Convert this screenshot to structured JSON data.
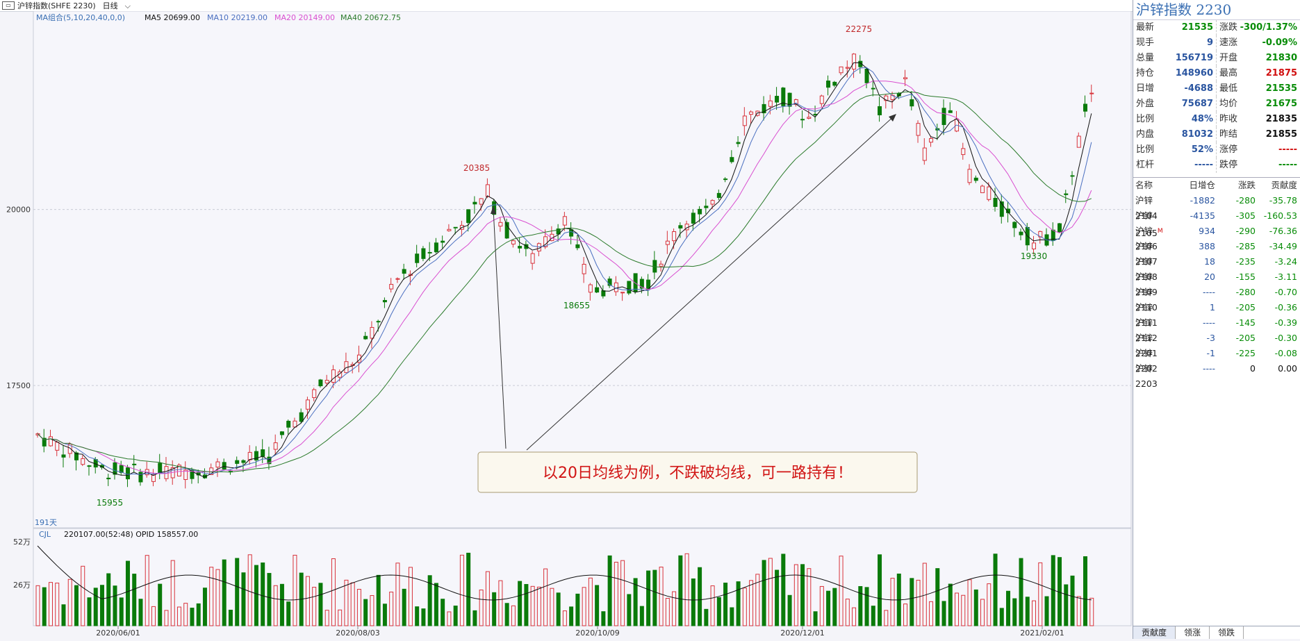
{
  "titlebar": {
    "symbol": "沪锌指数(SHFE 2230)",
    "period": "日线"
  },
  "ma_header": {
    "combo": "MA组合(5,10,20,40,0,0)",
    "ma5": "MA5 20699.00",
    "ma10": "MA10 20219.00",
    "ma20": "MA20 20149.00",
    "ma40": "MA40 20672.75"
  },
  "days": "191天",
  "price_levels": [
    {
      "label": "20000",
      "value": 20000
    },
    {
      "label": "17500",
      "value": 17500
    }
  ],
  "annotations": {
    "high_main": "22275",
    "high_left": "20385",
    "low_mid": "18655",
    "low_right": "19330",
    "low_left": "15955"
  },
  "callout": "以20日均线为例，不跌破均线，可一路持有！",
  "volume": {
    "header": "CJL",
    "values": "220107.00(52:48)  OPID 158557.00",
    "level_high": "52万",
    "level_mid": "26万"
  },
  "dates": [
    "2020/06/01",
    "2020/08/03",
    "2020/10/09",
    "2020/12/01",
    "2021/02/01"
  ],
  "panel": {
    "title": "沪锌指数 2230",
    "quote": [
      {
        "l1": "最新",
        "v1": "21535",
        "c1": "green",
        "l2": "涨跌",
        "v2": "-300/1.37%",
        "c2": "green"
      },
      {
        "l1": "现手",
        "v1": "9",
        "c1": "blue",
        "l2": "速涨",
        "v2": "-0.09%",
        "c2": "green"
      },
      {
        "l1": "总量",
        "v1": "156719",
        "c1": "blue",
        "l2": "开盘",
        "v2": "21830",
        "c2": "green"
      },
      {
        "l1": "持仓",
        "v1": "148960",
        "c1": "blue",
        "l2": "最高",
        "v2": "21875",
        "c2": "red"
      },
      {
        "l1": "日增",
        "v1": "-4688",
        "c1": "blue",
        "l2": "最低",
        "v2": "21535",
        "c2": "green"
      },
      {
        "l1": "外盘",
        "v1": "75687",
        "c1": "blue",
        "l2": "均价",
        "v2": "21675",
        "c2": "green"
      },
      {
        "l1": "比例",
        "v1": "48%",
        "c1": "blue",
        "l2": "昨收",
        "v2": "21835",
        "c2": "black"
      },
      {
        "l1": "内盘",
        "v1": "81032",
        "c1": "blue",
        "l2": "昨结",
        "v2": "21855",
        "c2": "black"
      },
      {
        "l1": "比例",
        "v1": "52%",
        "c1": "blue",
        "l2": "涨停",
        "v2": "-----",
        "c2": "red"
      },
      {
        "l1": "杠杆",
        "v1": "-----",
        "c1": "blue",
        "l2": "跌停",
        "v2": "-----",
        "c2": "green"
      }
    ],
    "table_header": {
      "name": "名称",
      "oi": "日增仓",
      "chg": "涨跌",
      "ctr": "贡献度"
    },
    "contracts": [
      {
        "name": "沪锌2104",
        "oi": "-1882",
        "chg": "-280",
        "ctr": "-35.78"
      },
      {
        "name": "沪锌2105",
        "oi": "-4135",
        "chg": "-305",
        "ctr": "-160.53"
      },
      {
        "name": "沪锌2106",
        "oi": "934",
        "chg": "-290",
        "ctr": "-76.36"
      },
      {
        "name": "沪锌2107",
        "oi": "388",
        "chg": "-285",
        "ctr": "-34.49"
      },
      {
        "name": "沪锌2108",
        "oi": "18",
        "chg": "-235",
        "ctr": "-3.24"
      },
      {
        "name": "沪锌2109",
        "oi": "20",
        "chg": "-155",
        "ctr": "-3.11"
      },
      {
        "name": "沪锌2110",
        "oi": "----",
        "chg": "-280",
        "ctr": "-0.70"
      },
      {
        "name": "沪锌2111",
        "oi": "1",
        "chg": "-205",
        "ctr": "-0.36"
      },
      {
        "name": "沪锌2112",
        "oi": "----",
        "chg": "-145",
        "ctr": "-0.39"
      },
      {
        "name": "沪锌2201",
        "oi": "-3",
        "chg": "-205",
        "ctr": "-0.30"
      },
      {
        "name": "沪锌2202",
        "oi": "-1",
        "chg": "-225",
        "ctr": "-0.08"
      },
      {
        "name": "沪锌2203",
        "oi": "----",
        "chg": "0",
        "ctr": "0.00"
      }
    ],
    "main_mark": "M",
    "tabs": [
      "贡献度",
      "领涨",
      "领跌"
    ]
  },
  "colors": {
    "up": "#d8323a",
    "down": "#0a7a0a",
    "ma5": "#111111",
    "ma10": "#4a6fc0",
    "ma20": "#d94fd0",
    "ma40": "#2a7a2a",
    "accent": "#3a6fb3"
  }
}
